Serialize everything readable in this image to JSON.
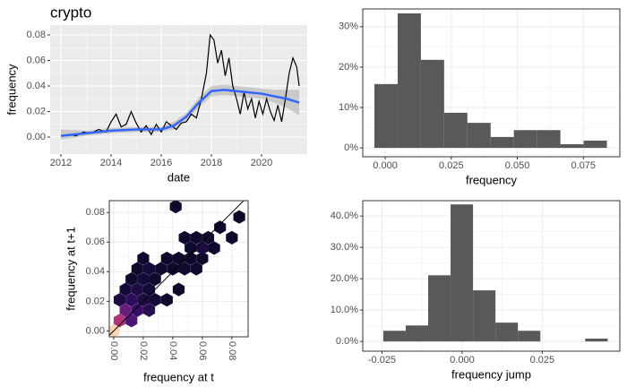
{
  "chart_data": [
    {
      "type": "line",
      "title": "crypto",
      "x_label": "date",
      "y_label": "frequency",
      "xlim": [
        2011.57,
        2021.82
      ],
      "xticks": [
        2012,
        2014,
        2016,
        2018,
        2020
      ],
      "ylim": [
        -0.0133,
        0.0877
      ],
      "yticks": [
        {
          "value": 0,
          "label": "0.00"
        },
        0.02,
        0.04,
        0.06,
        0.08
      ],
      "grid": true,
      "background": "#ebebeb",
      "series": [
        {
          "color": "#000000",
          "x": [
            2012.0,
            2012.3,
            2012.6,
            2012.9,
            2013.2,
            2013.5,
            2013.8,
            2014.0,
            2014.2,
            2014.4,
            2014.6,
            2014.8,
            2015.0,
            2015.2,
            2015.4,
            2015.6,
            2015.8,
            2016.0,
            2016.2,
            2016.4,
            2016.6,
            2016.8,
            2017.0,
            2017.2,
            2017.4,
            2017.6,
            2017.8,
            2017.95,
            2018.1,
            2018.25,
            2018.4,
            2018.55,
            2018.7,
            2018.85,
            2019.0,
            2019.15,
            2019.3,
            2019.45,
            2019.6,
            2019.75,
            2019.9,
            2020.05,
            2020.2,
            2020.35,
            2020.5,
            2020.65,
            2020.8,
            2020.95,
            2021.1,
            2021.25,
            2021.4,
            2021.5
          ],
          "values": [
            0.001,
            0.002,
            0.001,
            0.004,
            0.003,
            0.006,
            0.004,
            0.012,
            0.018,
            0.008,
            0.01,
            0.02,
            0.011,
            0.004,
            0.009,
            0.002,
            0.01,
            0.004,
            0.012,
            0.009,
            0.006,
            0.011,
            0.012,
            0.018,
            0.015,
            0.03,
            0.05,
            0.08,
            0.076,
            0.058,
            0.068,
            0.048,
            0.062,
            0.04,
            0.03,
            0.018,
            0.035,
            0.022,
            0.03,
            0.015,
            0.028,
            0.018,
            0.03,
            0.02,
            0.013,
            0.025,
            0.012,
            0.03,
            0.05,
            0.062,
            0.055,
            0.04
          ]
        },
        {
          "color": "#3366ff",
          "band_color": "#bdbdbd",
          "x": [
            2012,
            2013,
            2014,
            2015,
            2016,
            2016.5,
            2017,
            2017.5,
            2018,
            2018.5,
            2019,
            2019.5,
            2020,
            2020.5,
            2021,
            2021.5
          ],
          "values": [
            0.001,
            0.003,
            0.005,
            0.006,
            0.006,
            0.009,
            0.016,
            0.027,
            0.036,
            0.037,
            0.036,
            0.035,
            0.034,
            0.032,
            0.03,
            0.027
          ],
          "lower": [
            -0.002,
            0.001,
            0.003,
            0.004,
            0.004,
            0.006,
            0.013,
            0.023,
            0.032,
            0.033,
            0.032,
            0.031,
            0.03,
            0.027,
            0.023,
            0.017
          ],
          "upper": [
            0.006,
            0.005,
            0.007,
            0.008,
            0.008,
            0.012,
            0.019,
            0.031,
            0.04,
            0.041,
            0.04,
            0.039,
            0.038,
            0.037,
            0.037,
            0.037
          ]
        }
      ]
    },
    {
      "type": "histogram",
      "x_label": "frequency",
      "color": "#595959",
      "bins": [
        -0.0041,
        0.0047,
        0.0135,
        0.0223,
        0.0311,
        0.0399,
        0.0487,
        0.0575,
        0.0663,
        0.0751,
        0.0839
      ],
      "values": [
        15.8,
        33.3,
        21.8,
        8.7,
        6.2,
        2.7,
        4.4,
        4.4,
        0.9,
        1.8
      ],
      "xlim": [
        -0.0085,
        0.0888
      ],
      "xticks": [
        {
          "value": 0,
          "label": "0.000"
        },
        0.025,
        {
          "value": 0.05,
          "label": "0.050"
        },
        0.075
      ],
      "ylim": [
        -2.2,
        34.4
      ],
      "yticks": [
        {
          "value": 0,
          "label": "0%"
        },
        {
          "value": 10,
          "label": "10%"
        },
        {
          "value": 20,
          "label": "20%"
        },
        {
          "value": 30,
          "label": "30%"
        }
      ],
      "grid": true
    },
    {
      "type": "hexbin",
      "x_label": "frequency at t",
      "y_label": "frequency at t+1",
      "xlim": [
        -0.003,
        0.091
      ],
      "ylim": [
        -0.004,
        0.088
      ],
      "xticks": [
        {
          "value": 0,
          "label": "0.00"
        },
        0.02,
        0.04,
        0.06,
        0.08
      ],
      "yticks": [
        {
          "value": 0,
          "label": "0.00"
        },
        0.02,
        0.04,
        0.06,
        0.08
      ],
      "grid": true,
      "colorscale": [
        "#0d0a2c",
        "#3b0f70",
        "#8c2981",
        "#de4968",
        "#fe9f6d",
        "#fcd5b0"
      ],
      "x": [
        0.0,
        0.004,
        0.012,
        0.008,
        0.016,
        0.024,
        0.004,
        0.012,
        0.02,
        0.028,
        0.008,
        0.016,
        0.024,
        0.036,
        0.012,
        0.02,
        0.028,
        0.016,
        0.024,
        0.032,
        0.04,
        0.048,
        0.056,
        0.02,
        0.036,
        0.044,
        0.052,
        0.06,
        0.06,
        0.052,
        0.068,
        0.048,
        0.056,
        0.064,
        0.044,
        0.072,
        0.08,
        0.042,
        0.085
      ],
      "y": [
        0.0,
        0.007,
        0.007,
        0.014,
        0.014,
        0.014,
        0.021,
        0.021,
        0.021,
        0.021,
        0.028,
        0.028,
        0.028,
        0.021,
        0.035,
        0.035,
        0.035,
        0.042,
        0.042,
        0.042,
        0.042,
        0.042,
        0.042,
        0.049,
        0.049,
        0.049,
        0.049,
        0.049,
        0.056,
        0.056,
        0.056,
        0.063,
        0.063,
        0.063,
        0.028,
        0.07,
        0.063,
        0.084,
        0.077
      ],
      "counts": [
        30,
        15,
        8,
        10,
        6,
        4,
        3,
        5,
        3,
        2,
        2,
        3,
        2,
        1,
        1,
        2,
        1,
        1,
        2,
        1,
        1,
        1,
        1,
        1,
        1,
        1,
        1,
        1,
        3,
        1,
        1,
        1,
        1,
        1,
        1,
        1,
        1,
        1,
        1
      ]
    },
    {
      "type": "histogram",
      "x_label": "frequency jump",
      "color": "#595959",
      "bins": [
        -0.0246,
        -0.0176,
        -0.0106,
        -0.0036,
        0.0034,
        0.0104,
        0.0174,
        0.0244,
        0.0314,
        0.0384,
        0.0454
      ],
      "values": [
        3.4,
        5.1,
        21.1,
        43.7,
        16.3,
        6.0,
        3.4,
        0,
        0,
        0.9
      ],
      "xlim": [
        -0.031,
        0.0492
      ],
      "xticks": [
        -0.025,
        {
          "value": 0,
          "label": "0.000"
        },
        0.025
      ],
      "ylim": [
        -3.1,
        44.9
      ],
      "yticks": [
        {
          "value": 0,
          "label": "0.0%"
        },
        {
          "value": 10,
          "label": "10.0%"
        },
        {
          "value": 20,
          "label": "20.0%"
        },
        {
          "value": 30,
          "label": "30.0%"
        },
        {
          "value": 40,
          "label": "40.0%"
        }
      ],
      "grid": true
    }
  ]
}
